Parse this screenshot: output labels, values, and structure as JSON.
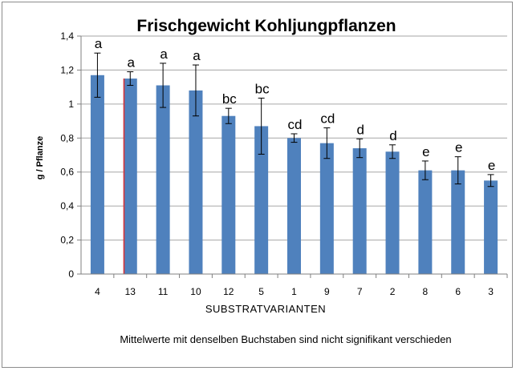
{
  "chart_data": {
    "type": "bar",
    "title": "Frischgewicht Kohljungpflanzen",
    "xlabel": "SUBSTRATVARIANTEN",
    "ylabel": "g / Pflanze",
    "note": "Mittelwerte mit denselben Buchstaben sind nicht signifikant verschieden",
    "ylim": [
      0,
      1.4
    ],
    "yticks": [
      "0",
      "0,2",
      "0,4",
      "0,6",
      "0,8",
      "1",
      "1,2",
      "1,4"
    ],
    "grid": true,
    "bar_color": "#4f81bd",
    "highlight_color": "#e03030",
    "categories": [
      "4",
      "13",
      "11",
      "10",
      "12",
      "5",
      "1",
      "9",
      "7",
      "2",
      "8",
      "6",
      "3"
    ],
    "values": [
      1.17,
      1.15,
      1.11,
      1.08,
      0.93,
      0.87,
      0.8,
      0.77,
      0.74,
      0.72,
      0.61,
      0.61,
      0.55
    ],
    "errors": [
      0.13,
      0.04,
      0.13,
      0.15,
      0.045,
      0.165,
      0.025,
      0.09,
      0.055,
      0.04,
      0.055,
      0.08,
      0.035
    ],
    "group_labels": [
      "a",
      "a",
      "a",
      "a",
      "bc",
      "bc",
      "cd",
      "cd",
      "d",
      "d",
      "e",
      "e",
      "e"
    ],
    "highlighted_category": "13"
  }
}
